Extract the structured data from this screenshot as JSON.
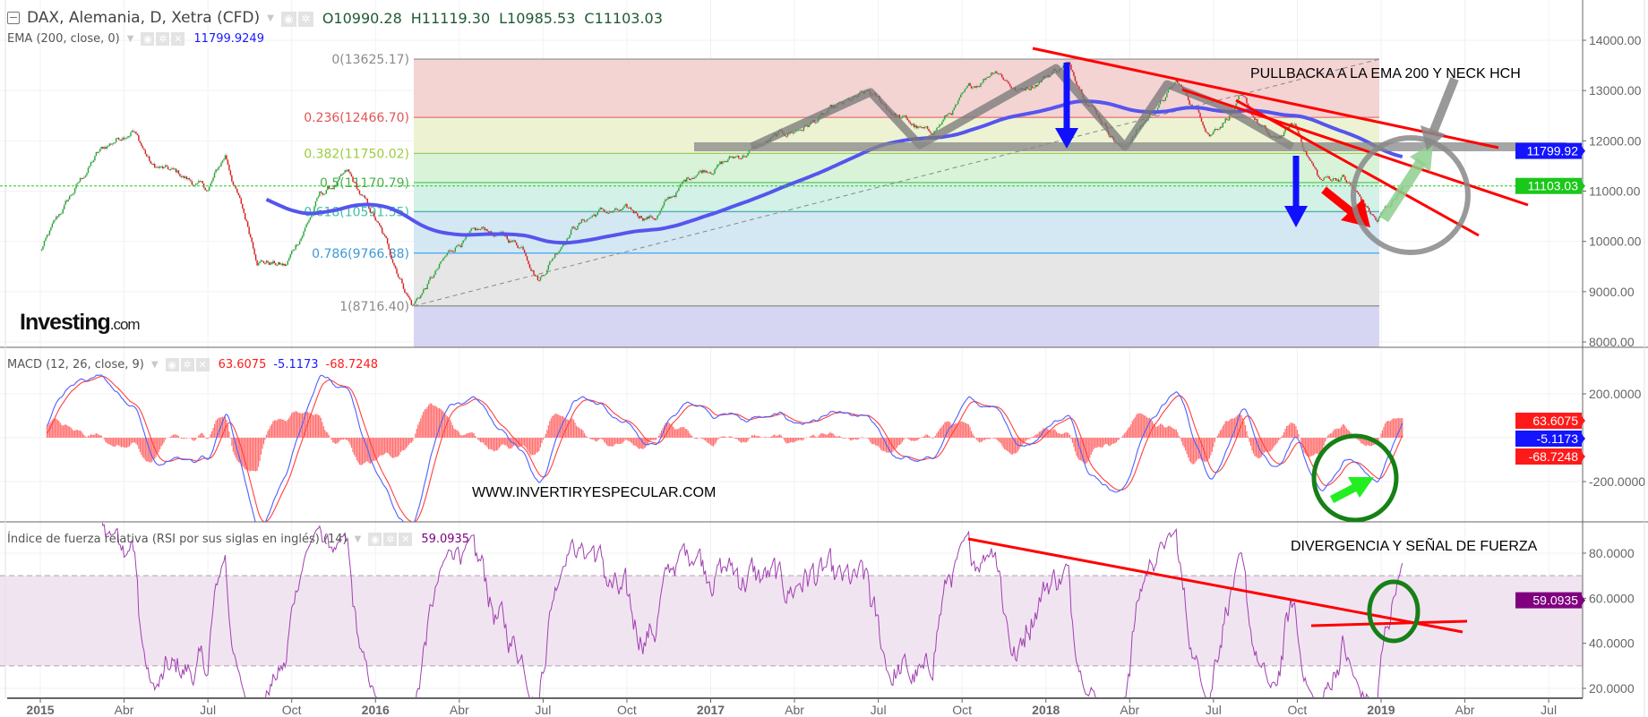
{
  "header": {
    "symbol": "DAX, Alemania, D, Xetra (CFD)",
    "open": "O10990.28",
    "high": "H11119.30",
    "low": "L10985.53",
    "close": "C11103.03"
  },
  "ema_legend": {
    "name": "EMA (200, close, 0)",
    "value": "11799.9249",
    "color": "#1a1aff"
  },
  "macd_legend": {
    "name": "MACD (12, 26, close, 9)",
    "values": [
      "63.6075",
      "-5.1173",
      "-68.7248"
    ]
  },
  "rsi_legend": {
    "name": "Índice de fuerza relativa (RSI por sus siglas en inglés) (14)",
    "value": "59.0935"
  },
  "logo": {
    "brand": "Investing",
    "suffix": ".com"
  },
  "price_tags": [
    {
      "label": "11799.92",
      "value": 11799.92,
      "color": "#1414ff"
    },
    {
      "label": "11103.03",
      "value": 11103.03,
      "color": "#19c819"
    }
  ],
  "macd_tags": [
    {
      "label": "63.6075",
      "value": 63.6075,
      "color": "#ff1a1a"
    },
    {
      "label": "-5.1173",
      "value": -5.1173,
      "color": "#1414ff"
    },
    {
      "label": "-68.7248",
      "value": -68.7248,
      "color": "#ff1a1a"
    }
  ],
  "rsi_tag": {
    "label": "59.0935",
    "value": 59.0935,
    "color": "#800080"
  },
  "fibonacci": [
    {
      "label": "0(13625.17)",
      "level": 0,
      "price": 13625.17,
      "line": "#9e9e9e",
      "fill": "#f4d3d3",
      "text": "#8a8a8a"
    },
    {
      "label": "0.236(12466.70)",
      "level": 0.236,
      "price": 12466.7,
      "line": "#e57373",
      "fill": "#edf3d2",
      "text": "#e05555"
    },
    {
      "label": "0.382(11750.02)",
      "level": 0.382,
      "price": 11750.02,
      "line": "#9ccc65",
      "fill": "#d8f3d8",
      "text": "#9ccc3c"
    },
    {
      "label": "0.5(11170.79)",
      "level": 0.5,
      "price": 11170.79,
      "line": "#66cc66",
      "fill": "#d3f1e6",
      "text": "#4caf50"
    },
    {
      "label": "0.618(10591.55)",
      "level": 0.618,
      "price": 10591.55,
      "line": "#4db6ac",
      "fill": "#d4e8f4",
      "text": "#40c0a0"
    },
    {
      "label": "0.786(9766.88)",
      "level": 0.786,
      "price": 9766.88,
      "line": "#42a5f5",
      "fill": "#e6e6e6",
      "text": "#3d9ad8"
    },
    {
      "label": "1(8716.40)",
      "level": 1,
      "price": 8716.4,
      "line": "#8a8a8a",
      "fill": "#d6d6f3",
      "text": "#8a8a8a"
    }
  ],
  "annotations": {
    "pullback": "PULLBACKA A LA EMA 200 Y NECK HCH",
    "website": "WWW.INVERTIRYESPECULAR.COM",
    "divergence": "DIVERGENCIA Y SEÑAL DE FUERZA"
  },
  "chart_data": {
    "type": "candlestick",
    "title": "DAX, Alemania, D, Xetra (CFD)",
    "price_axis": {
      "ticks": [
        8000,
        9000,
        10000,
        11000,
        12000,
        13000,
        14000
      ],
      "labels": [
        "8000.00",
        "9000.00",
        "10000.00",
        "11000.00",
        "12000.00",
        "13000.00",
        "14000.00"
      ],
      "range": [
        7900,
        14700
      ]
    },
    "macd_axis": {
      "ticks": [
        200,
        -200
      ],
      "labels": [
        "200.0000",
        "-200.0000"
      ],
      "range": [
        -400,
        400
      ]
    },
    "rsi_axis": {
      "ticks": [
        20,
        40,
        60,
        80
      ],
      "labels": [
        "20.0000",
        "40.0000",
        "60.0000",
        "80.0000"
      ],
      "bands": [
        30,
        70
      ]
    },
    "x_ticks": [
      {
        "date": "2015-01",
        "label": "2015"
      },
      {
        "date": "2015-04",
        "label": "Abr"
      },
      {
        "date": "2015-07",
        "label": "Jul"
      },
      {
        "date": "2015-10",
        "label": "Oct"
      },
      {
        "date": "2016-01",
        "label": "2016"
      },
      {
        "date": "2016-04",
        "label": "Abr"
      },
      {
        "date": "2016-07",
        "label": "Jul"
      },
      {
        "date": "2016-10",
        "label": "Oct"
      },
      {
        "date": "2017-01",
        "label": "2017"
      },
      {
        "date": "2017-04",
        "label": "Abr"
      },
      {
        "date": "2017-07",
        "label": "Jul"
      },
      {
        "date": "2017-10",
        "label": "Oct"
      },
      {
        "date": "2018-01",
        "label": "2018"
      },
      {
        "date": "2018-04",
        "label": "Abr"
      },
      {
        "date": "2018-07",
        "label": "Jul"
      },
      {
        "date": "2018-10",
        "label": "Oct"
      },
      {
        "date": "2019-01",
        "label": "2019"
      },
      {
        "date": "2019-04",
        "label": "Abr"
      },
      {
        "date": "2019-07",
        "label": "Jul"
      }
    ],
    "price_approx": [
      [
        "2015-01-01",
        9800
      ],
      [
        "2015-02-01",
        10800
      ],
      [
        "2015-03-01",
        11700
      ],
      [
        "2015-04-10",
        12300
      ],
      [
        "2015-05-01",
        11500
      ],
      [
        "2015-06-01",
        11300
      ],
      [
        "2015-07-01",
        11000
      ],
      [
        "2015-07-20",
        11700
      ],
      [
        "2015-08-24",
        9700
      ],
      [
        "2015-09-25",
        9500
      ],
      [
        "2015-11-01",
        10900
      ],
      [
        "2015-12-01",
        11300
      ],
      [
        "2016-01-01",
        10400
      ],
      [
        "2016-02-11",
        8750
      ],
      [
        "2016-04-01",
        10000
      ],
      [
        "2016-05-01",
        10200
      ],
      [
        "2016-06-10",
        9900
      ],
      [
        "2016-06-27",
        9300
      ],
      [
        "2016-08-01",
        10300
      ],
      [
        "2016-09-01",
        10600
      ],
      [
        "2016-11-01",
        10500
      ],
      [
        "2016-12-15",
        11400
      ],
      [
        "2017-02-01",
        11700
      ],
      [
        "2017-04-01",
        12200
      ],
      [
        "2017-06-20",
        12900
      ],
      [
        "2017-08-25",
        12100
      ],
      [
        "2017-10-01",
        12800
      ],
      [
        "2017-11-07",
        13500
      ],
      [
        "2017-12-01",
        13000
      ],
      [
        "2018-01-23",
        13550
      ],
      [
        "2018-03-23",
        11850
      ],
      [
        "2018-05-22",
        13150
      ],
      [
        "2018-06-28",
        12200
      ],
      [
        "2018-07-30",
        12800
      ],
      [
        "2018-09-05",
        11950
      ],
      [
        "2018-09-28",
        12300
      ],
      [
        "2018-10-26",
        11200
      ],
      [
        "2018-11-20",
        11300
      ],
      [
        "2018-12-27",
        10380
      ],
      [
        "2019-01-25",
        11103.03
      ]
    ]
  }
}
